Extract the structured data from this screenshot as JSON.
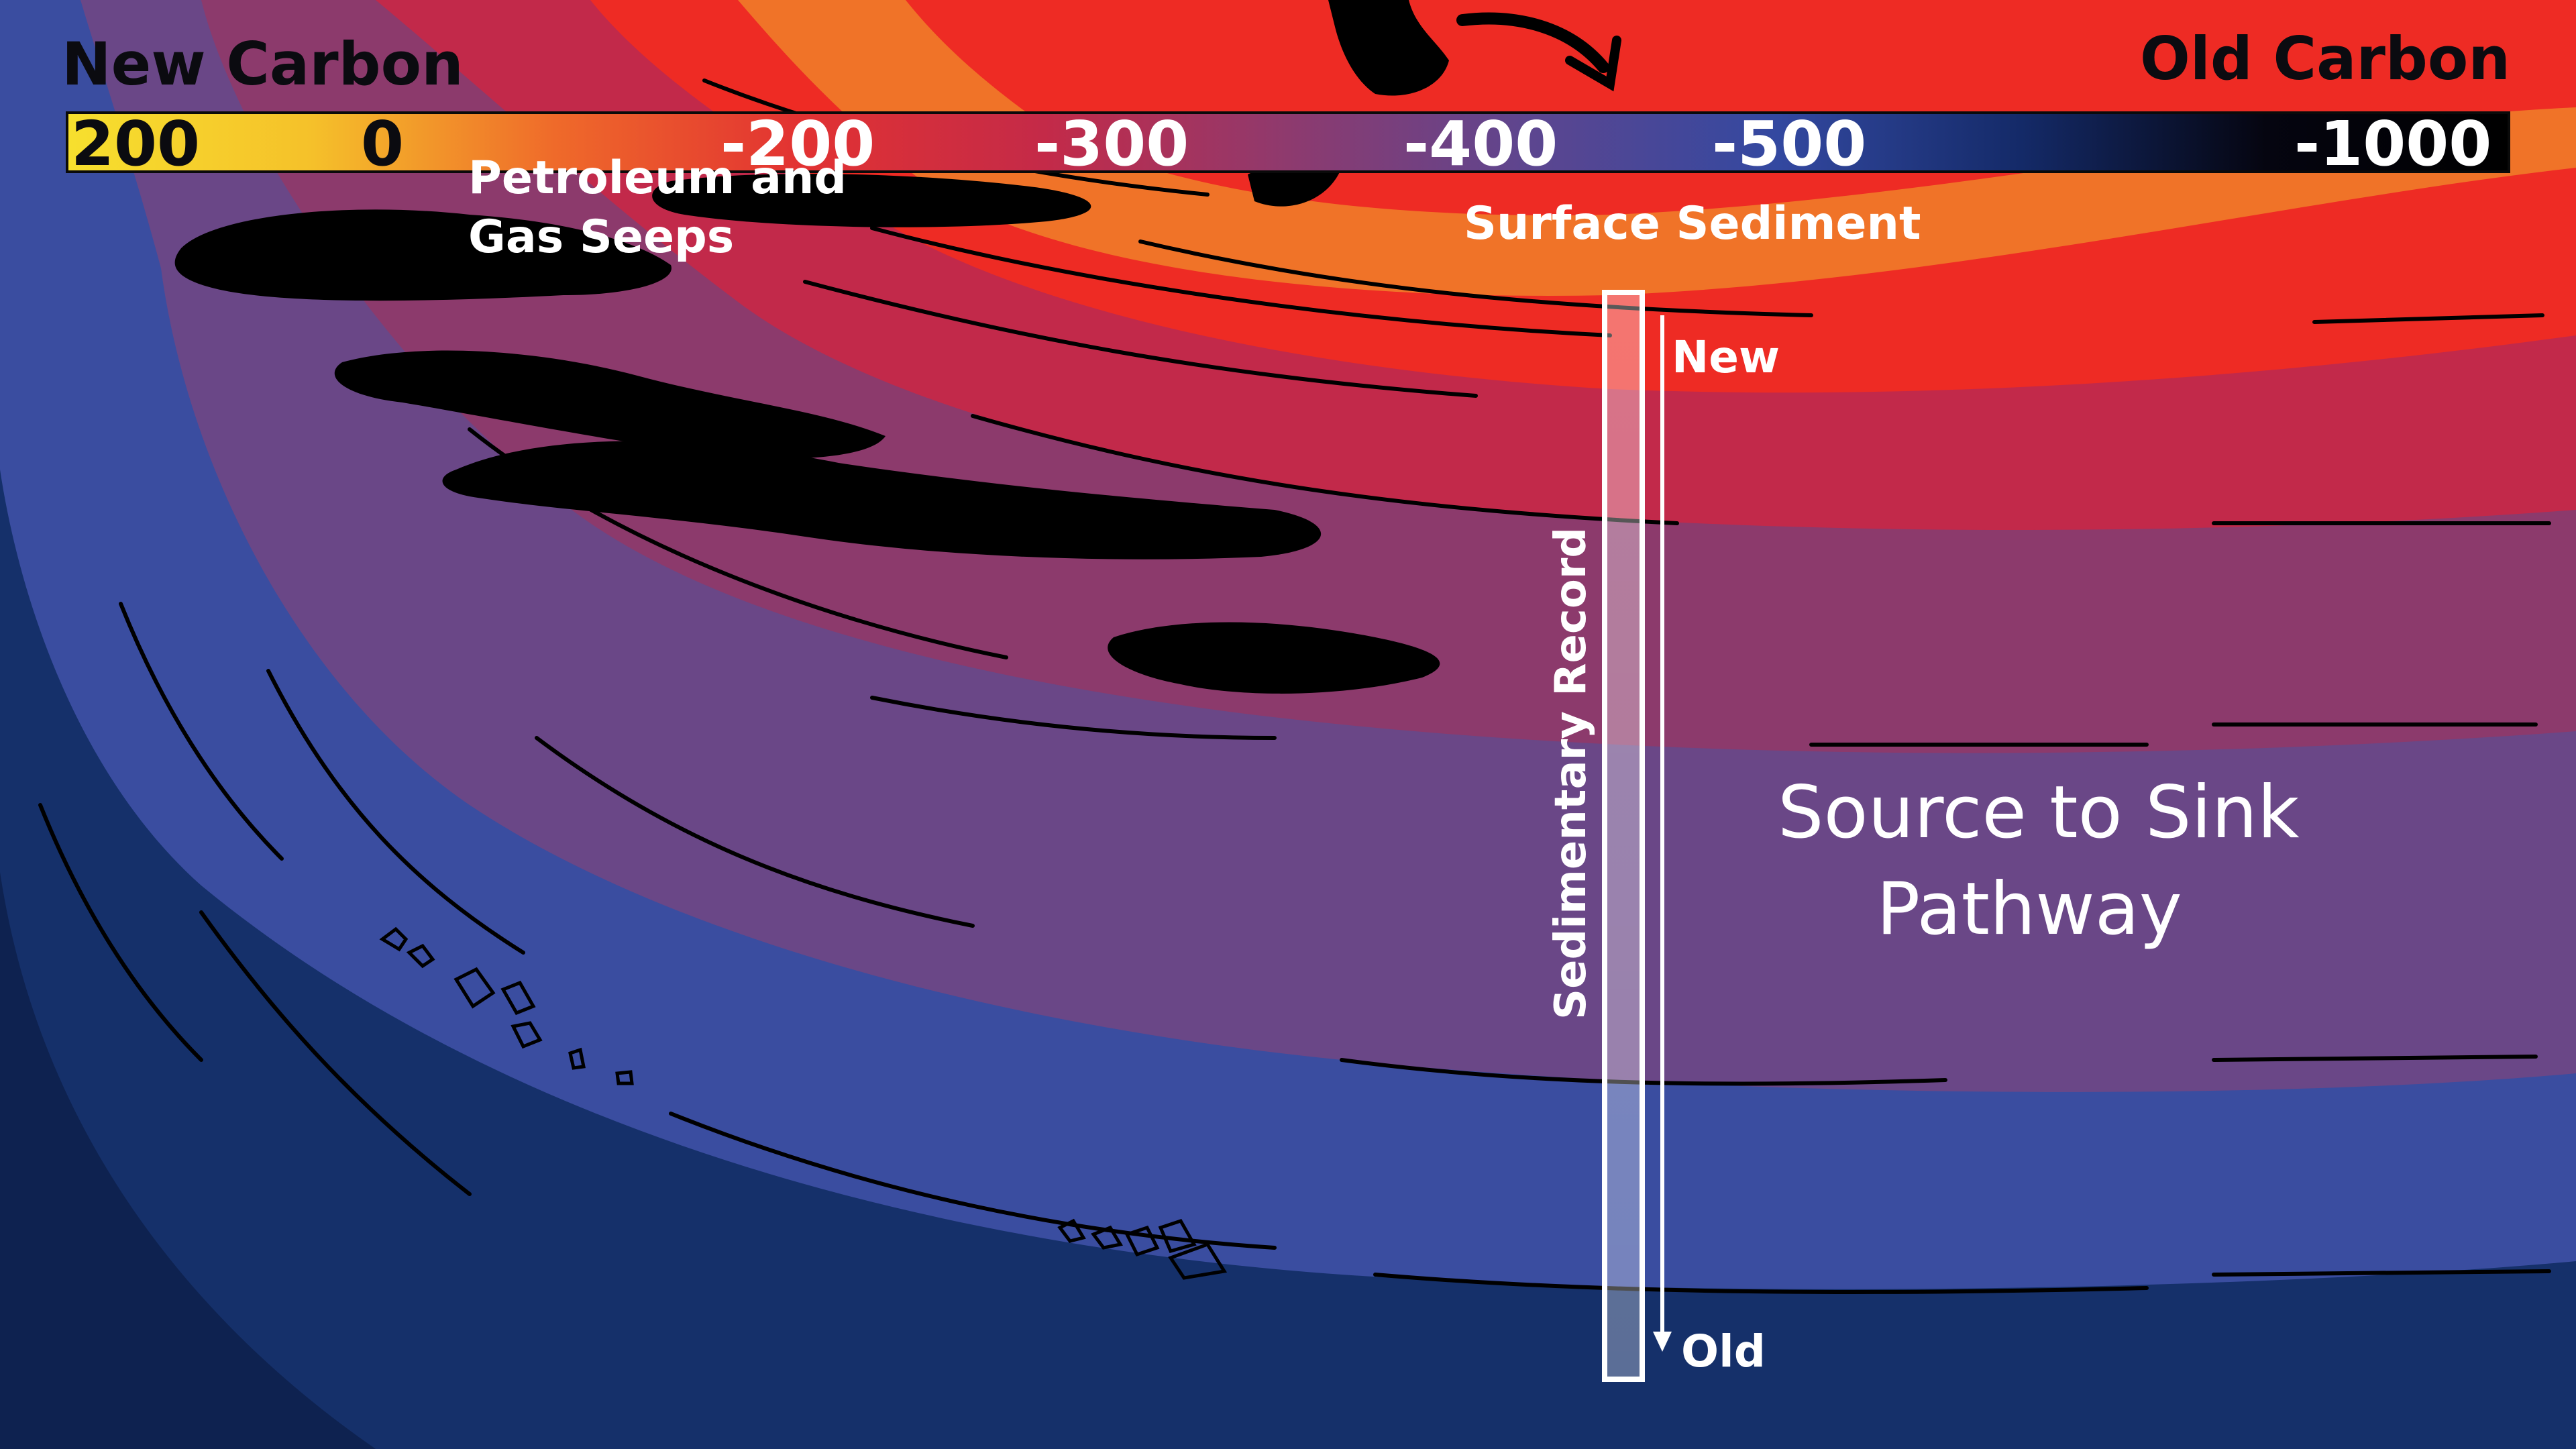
{
  "header": {
    "left_title": "New Carbon",
    "right_title": "Old Carbon"
  },
  "scale": {
    "ticks": [
      "200",
      "0",
      "-200",
      "-300",
      "-400",
      "-500",
      "-1000"
    ],
    "gradient_colors": [
      "#f7e02e",
      "#f5c12a",
      "#ef6a2a",
      "#e23232",
      "#c42a48",
      "#8e3a6e",
      "#5c4690",
      "#3348a0",
      "#142a68",
      "#050510",
      "#000000"
    ]
  },
  "labels": {
    "seeps": "Petroleum and Gas Seeps",
    "surface_sediment": "Surface Sediment",
    "pathway_line1": "Source to Sink",
    "pathway_line2": "Pathway",
    "core_new": "New",
    "core_old": "Old",
    "sedimentary_record": "Sedimentary Record"
  },
  "colors": {
    "band_orange": "#f07328",
    "band_red": "#ee2b24",
    "band_crimson": "#c2294a",
    "band_plum": "#8c3a6c",
    "band_purple": "#6a4787",
    "band_blue": "#3a4da0",
    "band_navy": "#15306a",
    "deep_navy": "#0e2250",
    "seep_black": "#000000"
  }
}
